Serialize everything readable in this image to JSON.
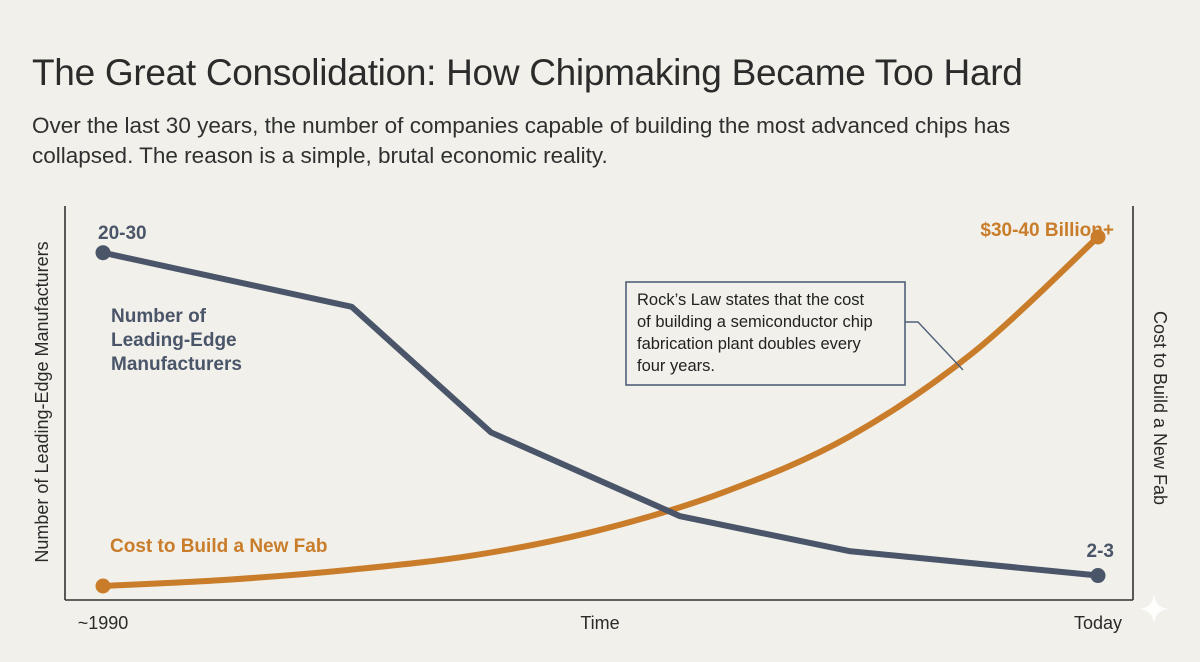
{
  "title": "The Great Consolidation: How Chipmaking Became Too Hard",
  "subtitle": "Over the last 30 years, the number of companies capable of building the most advanced chips has collapsed. The reason is a simple, brutal economic reality.",
  "chart_data": {
    "type": "line",
    "xlabel": "Time",
    "x_tick_labels": [
      "~1990",
      "Today"
    ],
    "ylabel_left": "Number of Leading-Edge Manufacturers",
    "ylabel_right": "Cost to Build a New Fab",
    "grid": false,
    "x_domain": [
      0,
      100
    ],
    "y_domain": [
      0,
      100
    ],
    "series": [
      {
        "name": "Number of Leading-Edge Manufacturers",
        "name_lines": [
          "Number of",
          "Leading-Edge",
          "Manufacturers"
        ],
        "color": "#4a5569",
        "start_label": "20-30",
        "end_label": "2-3",
        "x": [
          0,
          25,
          39,
          58,
          75,
          100
        ],
        "y": [
          95.5,
          80,
          44,
          20,
          10,
          3
        ]
      },
      {
        "name": "Cost to Build a New Fab",
        "color": "#c97d2a",
        "end_label": "$30-40 Billion+",
        "x": [
          0,
          12.5,
          25,
          37.5,
          50,
          62.5,
          75,
          87.5,
          100
        ],
        "y": [
          0,
          1.8,
          4.7,
          8.9,
          16.1,
          27,
          42.8,
          67,
          100
        ]
      }
    ],
    "annotation": {
      "lines": [
        "Rock’s Law states that the cost",
        "of building a semiconductor chip",
        "fabrication plant doubles every",
        "four years."
      ]
    },
    "colors": {
      "axis": "#333333",
      "annotation_border": "#51607a",
      "background": "#f1f0ea"
    }
  }
}
